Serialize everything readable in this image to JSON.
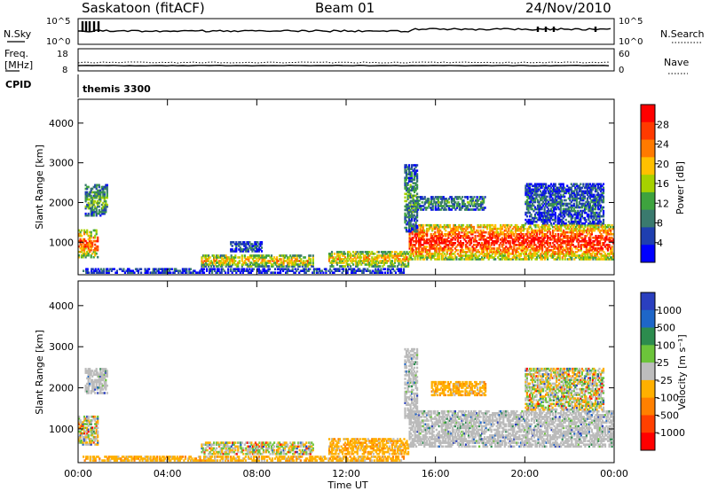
{
  "header": {
    "site": "Saskatoon (fitACF)",
    "beam": "Beam 01",
    "date": "24/Nov/2010"
  },
  "top_panels": {
    "nsky_label": "N.Sky",
    "nsearch_label": "N.Search",
    "nsky_ticks": [
      "10^5",
      "10^0"
    ],
    "nsearch_ticks": [
      "10^5",
      "10^0"
    ],
    "freq_label_1": "Freq.",
    "freq_label_2": "[MHz]",
    "freq_ticks": [
      "18",
      "8"
    ],
    "nave_label": "Nave",
    "nave_ticks": [
      "60",
      "0"
    ],
    "cpid_label": "CPID",
    "cpid_value": "themis 3300"
  },
  "colors": {
    "power_scale": [
      "#0000ff",
      "#1f3fb0",
      "#3a7a6e",
      "#3ea33e",
      "#a6d100",
      "#ffc000",
      "#ff7a00",
      "#ff3a00",
      "#ff0000"
    ],
    "velocity_scale": [
      "#2a3fbf",
      "#1e66c8",
      "#2c8c4e",
      "#6cc43a",
      "#bdbdbd",
      "#ffb000",
      "#ff8000",
      "#ff4000",
      "#ff0000"
    ],
    "ground_scatter": "#bbbbbb"
  },
  "chart_data": [
    {
      "type": "heatmap",
      "name": "power",
      "xlabel": "Time UT",
      "ylabel": "Slant Range [km]",
      "x_ticks": [
        "00:00",
        "04:00",
        "08:00",
        "12:00",
        "16:00",
        "20:00",
        "00:00"
      ],
      "y_ticks": [
        "1000",
        "2000",
        "3000",
        "4000"
      ],
      "xlim_hours": [
        0,
        24
      ],
      "ylim_km": [
        180,
        4600
      ],
      "colorbar": {
        "label": "Power [dB]",
        "ticks": [
          "4",
          "8",
          "12",
          "16",
          "20",
          "24",
          "28"
        ],
        "range": [
          0,
          30
        ]
      },
      "bands": [
        {
          "t0": 0.0,
          "t1": 0.9,
          "r0": 650,
          "r1": 1350,
          "level": 0.7
        },
        {
          "t0": 0.3,
          "t1": 1.3,
          "r0": 1700,
          "r1": 2500,
          "level": 0.35
        },
        {
          "t0": 0.2,
          "t1": 14.6,
          "r0": 260,
          "r1": 380,
          "level": 0.15
        },
        {
          "t0": 5.5,
          "t1": 10.5,
          "r0": 420,
          "r1": 720,
          "level": 0.55
        },
        {
          "t0": 6.8,
          "t1": 8.2,
          "r0": 800,
          "r1": 1050,
          "level": 0.2
        },
        {
          "t0": 11.2,
          "t1": 14.8,
          "r0": 420,
          "r1": 820,
          "level": 0.55
        },
        {
          "t0": 14.8,
          "t1": 24.0,
          "r0": 600,
          "r1": 1500,
          "level": 0.8
        },
        {
          "t0": 15.0,
          "t1": 18.2,
          "r0": 1850,
          "r1": 2200,
          "level": 0.3
        },
        {
          "t0": 14.6,
          "t1": 15.2,
          "r0": 1300,
          "r1": 3000,
          "level": 0.3
        },
        {
          "t0": 20.0,
          "t1": 23.5,
          "r0": 1500,
          "r1": 2500,
          "level": 0.2
        }
      ]
    },
    {
      "type": "heatmap",
      "name": "velocity",
      "xlabel": "Time UT",
      "ylabel": "Slant Range [km]",
      "x_ticks": [
        "00:00",
        "04:00",
        "08:00",
        "12:00",
        "16:00",
        "20:00",
        "00:00"
      ],
      "y_ticks": [
        "1000",
        "2000",
        "3000",
        "4000"
      ],
      "xlim_hours": [
        0,
        24
      ],
      "ylim_km": [
        180,
        4600
      ],
      "colorbar": {
        "label": "Velocity [m s⁻¹]",
        "ticks": [
          "1000",
          "500",
          "100",
          "25",
          "-25",
          "-100",
          "-500",
          "-1000"
        ],
        "range": [
          -1200,
          1200
        ]
      },
      "bands": [
        {
          "t0": 0.0,
          "t1": 0.9,
          "r0": 650,
          "r1": 1350,
          "kind": "mixed"
        },
        {
          "t0": 0.3,
          "t1": 1.3,
          "r0": 1900,
          "r1": 2500,
          "kind": "gs"
        },
        {
          "t0": 0.2,
          "t1": 14.6,
          "r0": 260,
          "r1": 380,
          "kind": "orange"
        },
        {
          "t0": 5.5,
          "t1": 10.5,
          "r0": 420,
          "r1": 720,
          "kind": "mixed"
        },
        {
          "t0": 11.2,
          "t1": 14.8,
          "r0": 420,
          "r1": 820,
          "kind": "orange"
        },
        {
          "t0": 14.8,
          "t1": 24.0,
          "r0": 600,
          "r1": 1500,
          "kind": "gs"
        },
        {
          "t0": 15.8,
          "t1": 18.2,
          "r0": 1850,
          "r1": 2200,
          "kind": "orange"
        },
        {
          "t0": 14.6,
          "t1": 15.2,
          "r0": 1300,
          "r1": 3000,
          "kind": "gs"
        },
        {
          "t0": 20.0,
          "t1": 23.5,
          "r0": 1500,
          "r1": 2500,
          "kind": "mixed"
        }
      ]
    }
  ]
}
